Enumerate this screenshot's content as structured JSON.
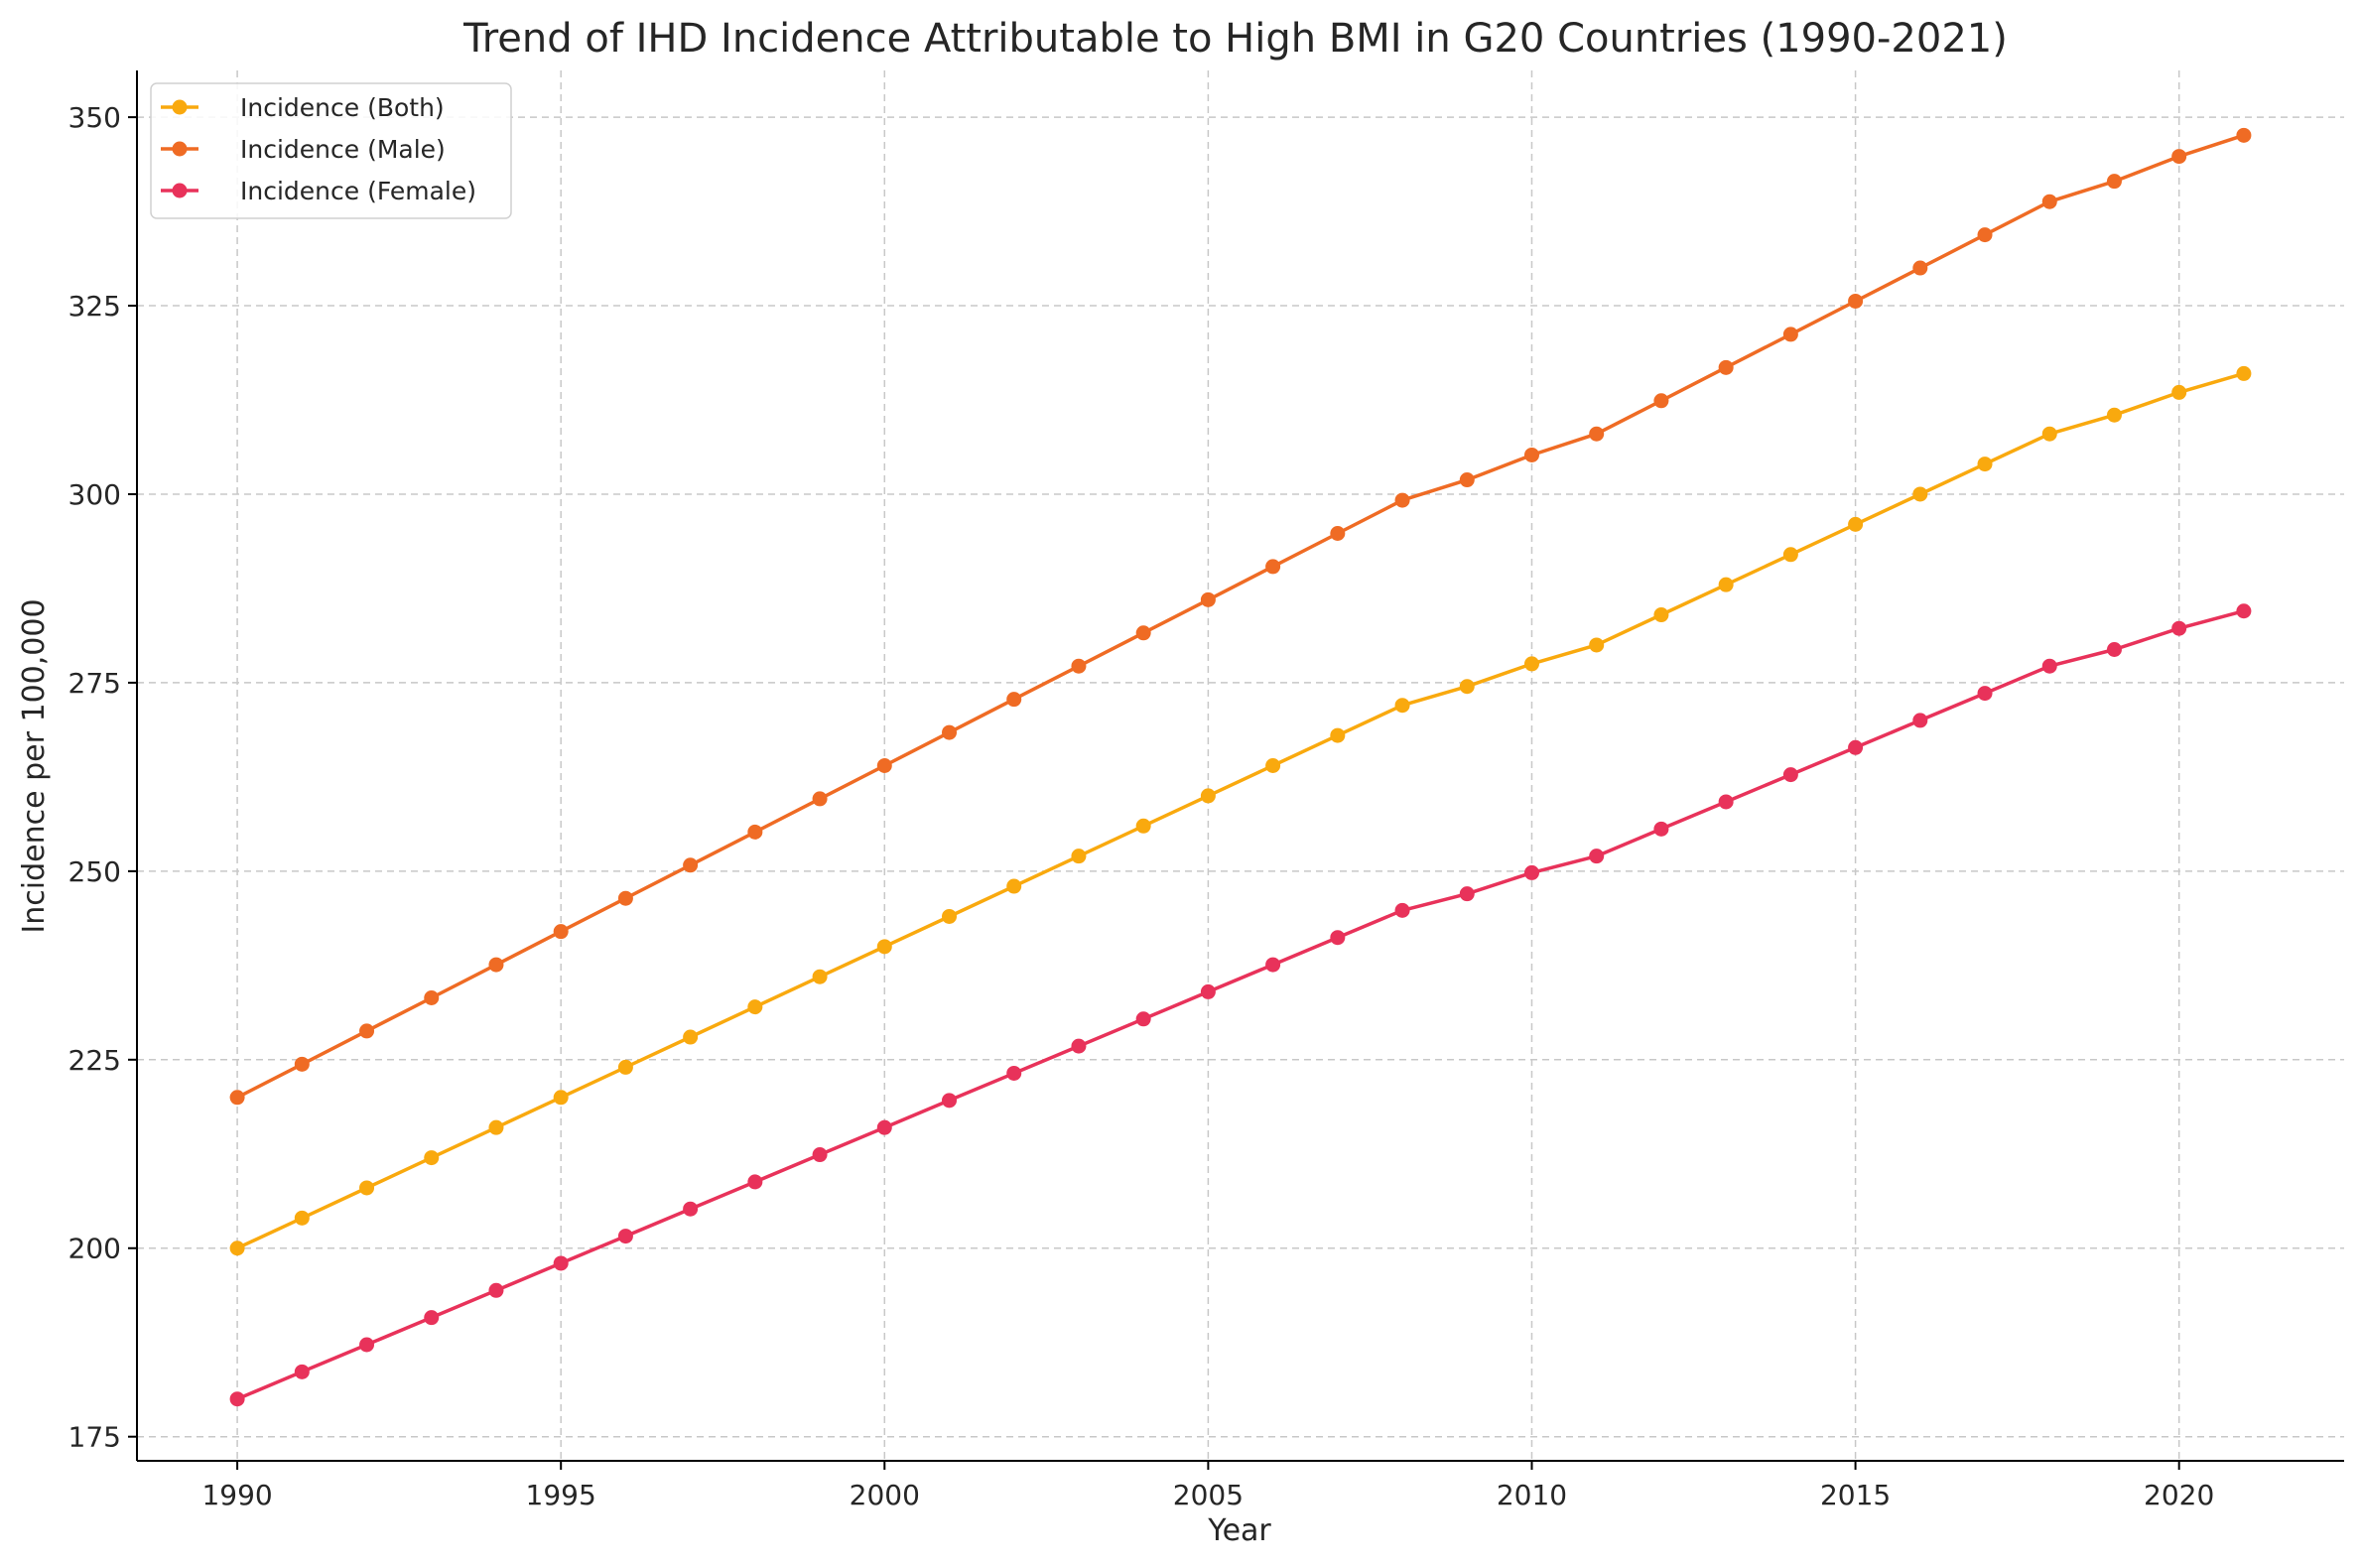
{
  "chart_data": {
    "type": "line",
    "title": "Trend of IHD Incidence Attributable to High BMI in G20 Countries (1990-2021)",
    "xlabel": "Year",
    "ylabel": "Incidence per 100,000",
    "x": [
      1990,
      1991,
      1992,
      1993,
      1994,
      1995,
      1996,
      1997,
      1998,
      1999,
      2000,
      2001,
      2002,
      2003,
      2004,
      2005,
      2006,
      2007,
      2008,
      2009,
      2010,
      2011,
      2012,
      2013,
      2014,
      2015,
      2016,
      2017,
      2018,
      2019,
      2020,
      2021
    ],
    "xlim": [
      1988.45,
      2022.55
    ],
    "ylim": [
      171.8,
      356.2
    ],
    "xticks": [
      1990,
      1995,
      2000,
      2005,
      2010,
      2015,
      2020
    ],
    "yticks": [
      175,
      200,
      225,
      250,
      275,
      300,
      325,
      350
    ],
    "grid": true,
    "legend_position": "top-left",
    "series": [
      {
        "name": "Incidence (Both)",
        "color": "#f9a90e",
        "values": [
          200,
          204,
          208,
          212,
          216,
          220,
          224,
          228,
          232,
          236,
          240,
          244,
          248,
          252,
          256,
          260,
          264,
          268,
          272,
          274.5,
          277.5,
          280,
          284,
          288,
          292,
          296,
          300,
          304,
          308,
          310.5,
          313.5,
          316
        ]
      },
      {
        "name": "Incidence (Male)",
        "color": "#ef6b24",
        "values": [
          220,
          224.4,
          228.8,
          233.2,
          237.6,
          242,
          246.4,
          250.8,
          255.2,
          259.6,
          264,
          268.4,
          272.8,
          277.2,
          281.6,
          286,
          290.4,
          294.8,
          299.2,
          301.9,
          305.2,
          308,
          312.4,
          316.8,
          321.2,
          325.6,
          330,
          334.4,
          338.8,
          341.5,
          344.8,
          347.6
        ]
      },
      {
        "name": "Incidence (Female)",
        "color": "#e8325a",
        "values": [
          180,
          183.6,
          187.2,
          190.8,
          194.4,
          198,
          201.6,
          205.2,
          208.8,
          212.4,
          216,
          219.6,
          223.2,
          226.8,
          230.4,
          234,
          237.6,
          241.2,
          244.8,
          247,
          249.8,
          252,
          255.6,
          259.2,
          262.8,
          266.4,
          270,
          273.6,
          277.2,
          279.4,
          282.2,
          284.5
        ]
      }
    ]
  }
}
